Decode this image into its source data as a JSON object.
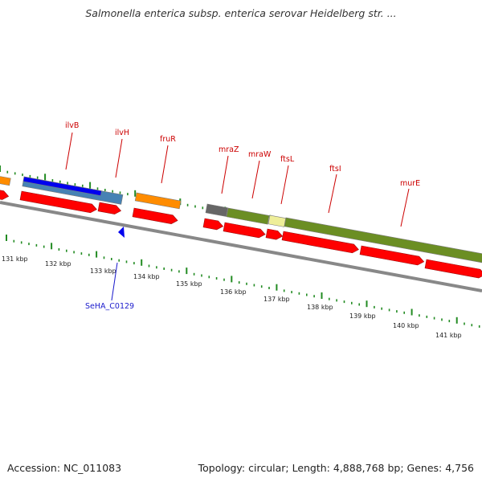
{
  "title": "Salmonella enterica subsp. enterica serovar Heidelberg str. ...",
  "footer": {
    "accession": "Accession: NC_011083",
    "summary": "Topology: circular; Length: 4,888,768 bp; Genes: 4,756"
  },
  "colors": {
    "cds_red": "#ff0000",
    "gene_orange": "#ff8c00",
    "blue": "#0000ee",
    "steel_blue": "#4682b4",
    "olive": "#6b8e23",
    "dark_gray": "#666666",
    "pale_yellow": "#eeee99",
    "tick_green": "#228b22",
    "label_red": "#cc0000",
    "label_blue": "#1a1acc"
  },
  "kbp_labels": [
    "131 kbp",
    "132 kbp",
    "133 kbp",
    "134 kbp",
    "135 kbp",
    "136 kbp",
    "137 kbp",
    "138 kbp",
    "139 kbp",
    "140 kbp",
    "141 kbp"
  ],
  "gene_labels": [
    "ilvB",
    "ilvH",
    "fruR",
    "mraZ",
    "mraW",
    "ftsL",
    "ftsI",
    "murE"
  ],
  "feature_labels": [
    "SeHA_C0129"
  ]
}
